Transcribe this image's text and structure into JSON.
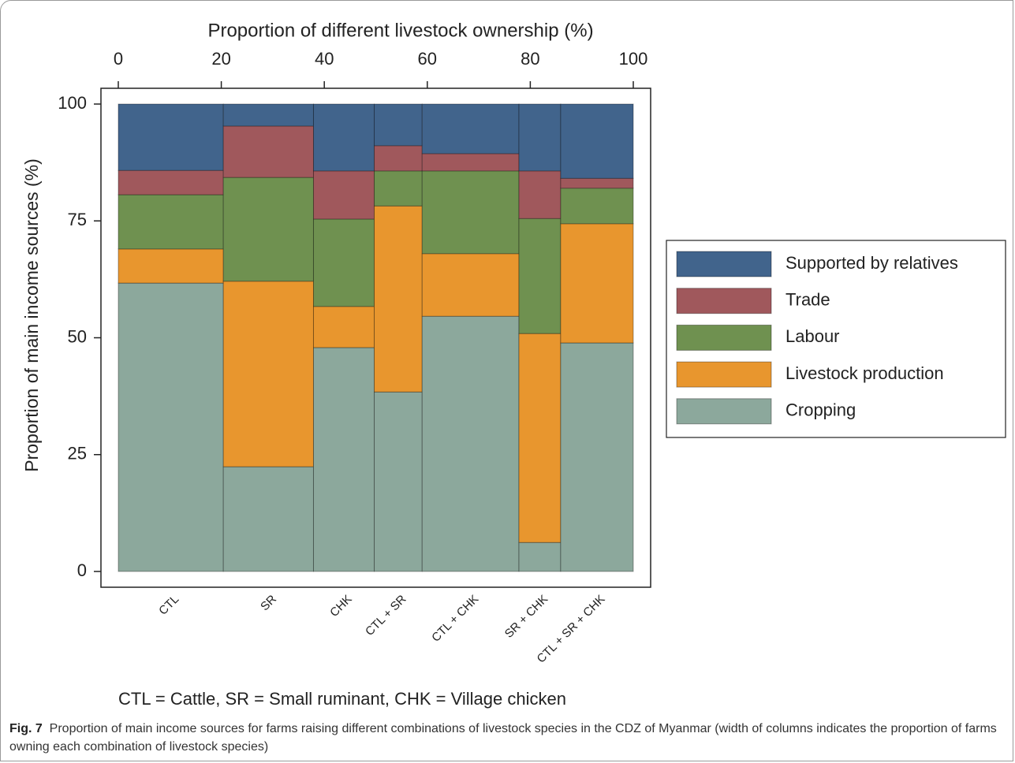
{
  "chart_data": {
    "type": "mosaic",
    "title": "Proportion of different livestock ownership (%)",
    "y_label": "Proportion of main income sources (%)",
    "note": "CTL = Cattle, SR = Small ruminant, CHK = Village chicken",
    "categories": [
      "CTL",
      "SR",
      "CHK",
      "CTL + SR",
      "CTL + CHK",
      "SR + CHK",
      "CTL + SR + CHK"
    ],
    "widths": [
      20.4,
      17.5,
      11.8,
      9.3,
      18.8,
      8.1,
      14.1
    ],
    "series": [
      {
        "name": "Supported by relatives",
        "color": "#41648c",
        "values": [
          14.2,
          4.7,
          14.3,
          8.9,
          10.6,
          14.3,
          15.9
        ]
      },
      {
        "name": "Trade",
        "color": "#a0585c",
        "values": [
          5.2,
          11.0,
          10.3,
          5.4,
          3.7,
          10.2,
          2.1
        ]
      },
      {
        "name": "Labour",
        "color": "#6f9150",
        "values": [
          11.6,
          22.2,
          18.7,
          7.5,
          17.7,
          24.6,
          7.6
        ]
      },
      {
        "name": "Livestock production",
        "color": "#e8962e",
        "values": [
          7.3,
          39.7,
          8.8,
          39.8,
          13.4,
          44.7,
          25.5
        ]
      },
      {
        "name": "Cropping",
        "color": "#8ca89c",
        "values": [
          61.7,
          22.4,
          47.9,
          38.4,
          54.6,
          6.2,
          48.9
        ]
      }
    ],
    "xlim": [
      0,
      100
    ],
    "xticks": [
      0,
      20,
      40,
      60,
      80,
      100
    ],
    "ylim": [
      0,
      100
    ],
    "yticks": [
      0,
      25,
      50,
      75,
      100
    ],
    "legend": "right"
  },
  "caption": {
    "label": "Fig. 7",
    "text": "Proportion of main income sources for farms raising different combinations of livestock species in the CDZ of Myanmar (width of columns indicates the proportion of farms owning each combination of livestock species)"
  }
}
